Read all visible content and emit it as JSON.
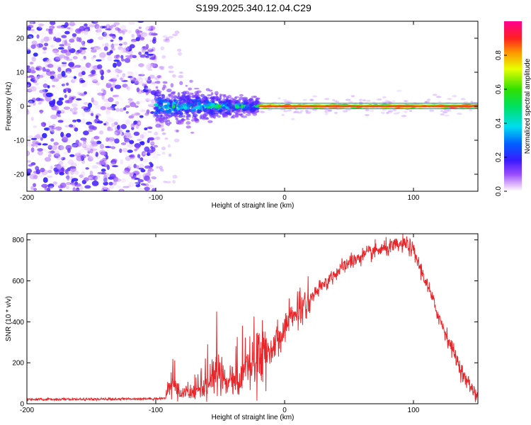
{
  "figure": {
    "title": "S199.2025.340.12.04.C29"
  },
  "chart_data": [
    {
      "type": "heatmap",
      "xlabel": "Height of straight line (km)",
      "ylabel": "Frequency (Hz)",
      "xlim": [
        -200,
        150
      ],
      "ylim": [
        -25,
        25
      ],
      "xticks": [
        -200,
        -100,
        0,
        100
      ],
      "yticks": [
        -20,
        -10,
        0,
        10,
        20
      ],
      "regions": [
        {
          "name": "noise",
          "x_range": [
            -200,
            -100
          ],
          "freq_spread": 25,
          "amplitude_range": [
            0.0,
            0.2
          ]
        },
        {
          "name": "transition",
          "x_range": [
            -100,
            -20
          ],
          "freq_spread_start": 6,
          "freq_spread_end": 2,
          "amplitude_range": [
            0.1,
            0.5
          ]
        },
        {
          "name": "carrier",
          "x_range": [
            -20,
            150
          ],
          "frequency": 0,
          "amplitude_range": [
            0.5,
            0.95
          ]
        }
      ],
      "colorbar": {
        "label": "Normalized spectral amplitude",
        "range": [
          0.0,
          1.0
        ],
        "ticks": [
          0.0,
          0.2,
          0.4,
          0.6,
          0.8
        ]
      }
    },
    {
      "type": "line",
      "xlabel": "Height of straight line (km)",
      "ylabel": "SNR (10 * v/v)",
      "xlim": [
        -200,
        150
      ],
      "ylim": [
        0,
        830
      ],
      "xticks": [
        -200,
        -100,
        0,
        100
      ],
      "yticks": [
        0,
        200,
        400,
        600,
        800
      ],
      "series": [
        {
          "name": "SNR",
          "color": "#e8262a",
          "x": [
            -200,
            -180,
            -160,
            -140,
            -120,
            -100,
            -92,
            -90,
            -85,
            -80,
            -75,
            -70,
            -65,
            -60,
            -55,
            -50,
            -45,
            -40,
            -35,
            -30,
            -25,
            -20,
            -15,
            -10,
            -5,
            0,
            10,
            20,
            30,
            40,
            50,
            60,
            70,
            80,
            90,
            95,
            100,
            110,
            120,
            130,
            140,
            150
          ],
          "values": [
            20,
            22,
            22,
            22,
            24,
            25,
            28,
            100,
            80,
            40,
            60,
            55,
            60,
            100,
            140,
            165,
            100,
            130,
            100,
            200,
            180,
            220,
            250,
            280,
            320,
            380,
            440,
            510,
            580,
            640,
            690,
            720,
            745,
            760,
            775,
            780,
            745,
            590,
            420,
            270,
            120,
            40
          ]
        }
      ]
    }
  ]
}
